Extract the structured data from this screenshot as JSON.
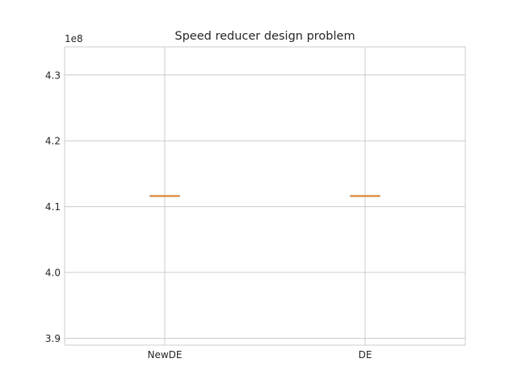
{
  "chart_data": {
    "type": "box",
    "title": "Speed reducer design problem",
    "xlabel": "",
    "ylabel": "",
    "y_offset_label": "1e8",
    "y_multiplier": 100000000,
    "categories": [
      "NewDE",
      "DE"
    ],
    "series": [
      {
        "category": "NewDE",
        "min": 4.1161,
        "q1": 4.1161,
        "median": 4.1161,
        "q3": 4.1161,
        "max": 4.1161
      },
      {
        "category": "DE",
        "min": 4.1161,
        "q1": 4.1161,
        "median": 4.1161,
        "q3": 4.1161,
        "max": 4.1161
      }
    ],
    "yticks": [
      3.9,
      4.0,
      4.1,
      4.2,
      4.3
    ],
    "ytick_labels": [
      "3.9",
      "4.0",
      "4.1",
      "4.2",
      "4.3"
    ],
    "ylim": [
      3.8895,
      4.3427
    ],
    "grid": true,
    "colors": {
      "box": "#5a5a5a",
      "median": "#ff7f0e",
      "grid": "#cccccc",
      "spine": "#cccccc",
      "text": "#262626"
    }
  }
}
